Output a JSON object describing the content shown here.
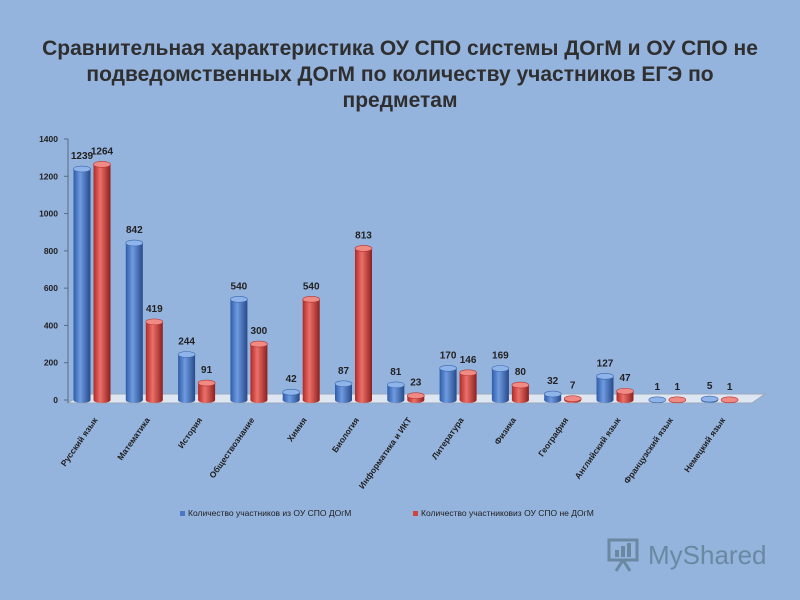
{
  "title": "Сравнительная характеристика ОУ СПО системы ДОгМ и ОУ СПО не подведомственных ДОгМ по количеству участников ЕГЭ по предметам",
  "watermark": "MyShared",
  "colors": {
    "background": "#94b3dd",
    "series1": "#4a78c2",
    "series2": "#d2433f"
  },
  "chart_data": {
    "type": "bar",
    "categories": [
      "Русский язык",
      "Математика",
      "История",
      "Обществознание",
      "Химия",
      "Биология",
      "Информатика и ИКТ",
      "Литература",
      "Физика",
      "География",
      "Английский язык",
      "Французский язык",
      "Немецкий язык"
    ],
    "series": [
      {
        "name": "Количество  участников  из ОУ СПО ДОгМ",
        "values": [
          1239,
          842,
          244,
          540,
          42,
          87,
          81,
          170,
          169,
          32,
          127,
          1,
          5
        ]
      },
      {
        "name": "Количество  участниковиз  ОУ СПО не ДОгМ",
        "values": [
          1264,
          419,
          91,
          300,
          540,
          813,
          23,
          146,
          80,
          7,
          47,
          1,
          1
        ]
      }
    ],
    "yticks": [
      0,
      200,
      400,
      600,
      800,
      1000,
      1200,
      1400
    ],
    "ylim": [
      0,
      1400
    ],
    "grid": false,
    "legend_position": "bottom",
    "style": "3d-cylinder"
  }
}
